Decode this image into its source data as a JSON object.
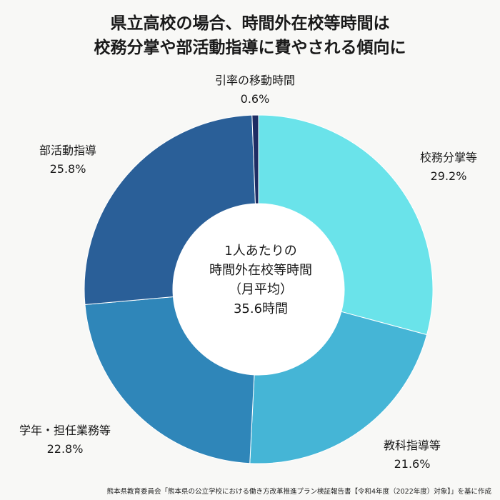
{
  "title": {
    "line1": "県立高校の場合、時間外在校等時間は",
    "line2": "校務分掌や部活動指導に費やされる傾向に"
  },
  "center": {
    "line1": "1人あたりの",
    "line2": "時間外在校等時間",
    "line3": "（月平均）",
    "line4": "35.6時間"
  },
  "source": "熊本県教育委員会「熊本県の公立学校における働き方改革推進プラン検証報告書【令和4年度（2022年度）対象】」を基に作成",
  "chart_data": {
    "type": "pie",
    "title": "県立高校の場合、時間外在校等時間は校務分掌や部活動指導に費やされる傾向に",
    "slices": [
      {
        "label": "校務分掌等",
        "value": 29.2,
        "value_label": "29.2%",
        "color": "#6ae3ea"
      },
      {
        "label": "教科指導等",
        "value": 21.6,
        "value_label": "21.6%",
        "color": "#45b5d6"
      },
      {
        "label": "学年・担任業務等",
        "value": 22.8,
        "value_label": "22.8%",
        "color": "#2f86b9"
      },
      {
        "label": "部活動指導",
        "value": 25.8,
        "value_label": "25.8%",
        "color": "#2a5f98"
      },
      {
        "label": "引率の移動時間",
        "value": 0.6,
        "value_label": "0.6%",
        "color": "#1e2d64"
      }
    ],
    "donut": true,
    "start_angle": "12 o'clock",
    "direction": "clockwise"
  }
}
